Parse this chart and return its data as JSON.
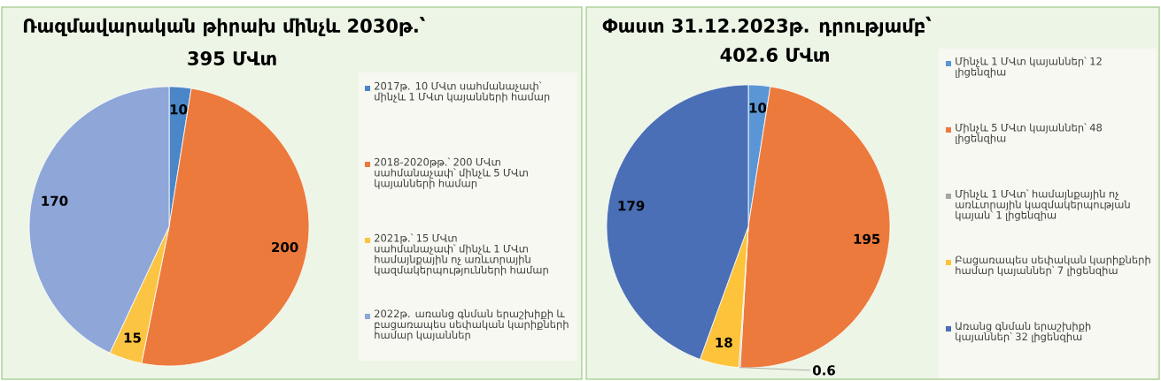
{
  "chart_data": [
    {
      "type": "pie",
      "title": "Ռազմավարական թիրախ մինչև 2030թ.՝",
      "subtitle": "395 ՄՎտ",
      "categories": [
        "2017թ. 10 ՄՎտ սահմանաչափ՝ մինչև 1 ՄՎտ կայանների համար",
        "2018-2020թթ.՝ 200 ՄՎտ սահմանաչափ՝ մինչև 5 ՄՎտ կայանների համար",
        "2021թ.՝ 15 ՄՎտ սահմանաչափ՝ մինչև 1 ՄՎտ համայնքային ոչ առևտրային կազմակերպությունների համար",
        "2022թ. առանց գնման երաշխիքի և բացառապես սեփական կարիքների համար կայաններ"
      ],
      "values": [
        10,
        200,
        15,
        170
      ],
      "colors": [
        "#4a86c8",
        "#ec7a3c",
        "#fbc443",
        "#8ea6d8"
      ],
      "data_labels": true,
      "legend": "right"
    },
    {
      "type": "pie",
      "title": "Փաստ 31.12.2023թ. դրությամբ՝",
      "subtitle": "402.6 ՄՎտ",
      "categories": [
        "Մինչև 1 ՄՎտ կայաններ՝ 12 լիցենզիա",
        "Մինչև 5 ՄՎտ կայաններ՝ 48 լիցենզիա",
        "Մինչև 1 ՄՎտ՝ համայնքային ոչ առևտրային կազմակերպության կայան՝ 1 լիցենզիա",
        "Բացառապես սեփական կարիքների համար կայաններ՝ 7 լիցենզիա",
        "Առանց գնման երաշխիքի կայաններ՝ 32 լիցենզիա"
      ],
      "values": [
        10,
        195,
        0.6,
        18,
        179
      ],
      "colors": [
        "#5a96d6",
        "#ec7a3c",
        "#a5a5a5",
        "#fcc33b",
        "#4a6fb6"
      ],
      "data_labels": true,
      "legend": "right"
    }
  ]
}
